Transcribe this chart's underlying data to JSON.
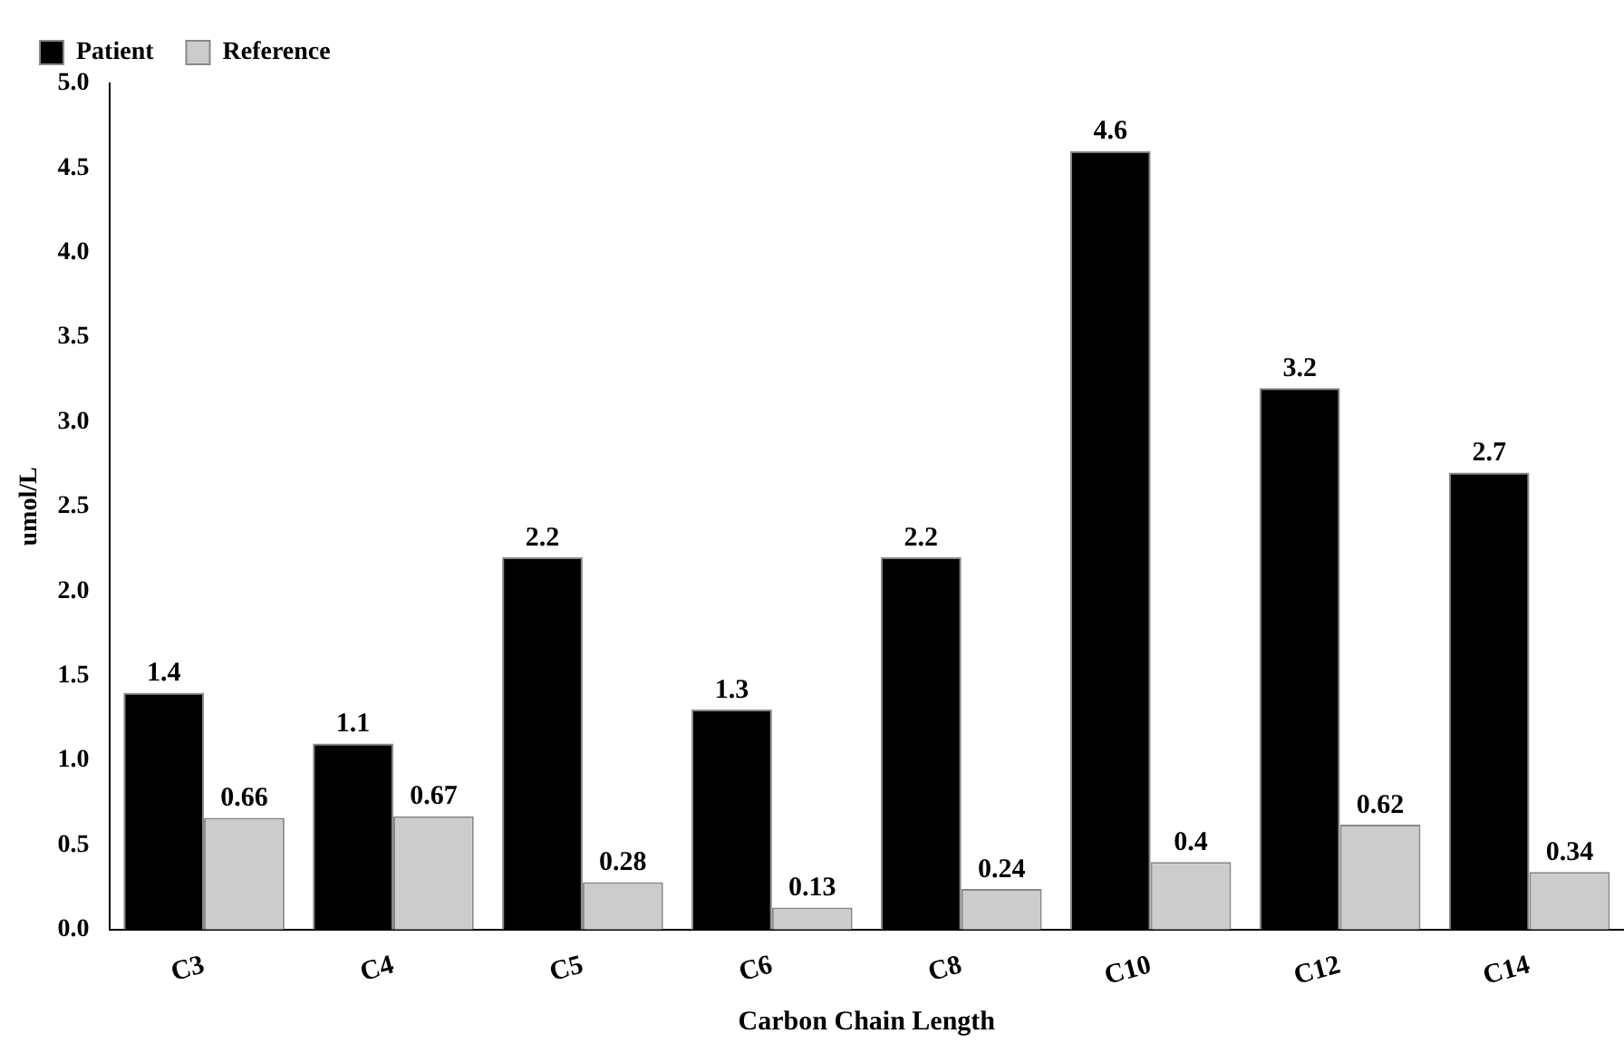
{
  "chart_data": {
    "type": "bar",
    "xlabel": "Carbon Chain Length",
    "ylabel": "umol/L",
    "categories": [
      "C3",
      "C4",
      "C5",
      "C6",
      "C8",
      "C10",
      "C12",
      "C14"
    ],
    "series": [
      {
        "name": "Patient",
        "color": "#000000",
        "values": [
          1.4,
          1.1,
          2.2,
          1.3,
          2.2,
          4.6,
          3.2,
          2.7
        ]
      },
      {
        "name": "Reference",
        "color": "#cccccc",
        "values": [
          0.66,
          0.67,
          0.28,
          0.13,
          0.24,
          0.4,
          0.62,
          0.34
        ]
      }
    ],
    "ylim": [
      0,
      5
    ],
    "yticks": [
      {
        "value": 0,
        "label": "0.0"
      },
      0.5,
      {
        "value": 1,
        "label": "1.0"
      },
      1.5,
      {
        "value": 2,
        "label": "2.0"
      },
      2.5,
      {
        "value": 3,
        "label": "3.0"
      },
      3.5,
      {
        "value": 4,
        "label": "4.0"
      },
      4.5,
      {
        "value": 5,
        "label": "5.0"
      }
    ],
    "grid": false,
    "legend": "top left",
    "data_labels": true
  }
}
